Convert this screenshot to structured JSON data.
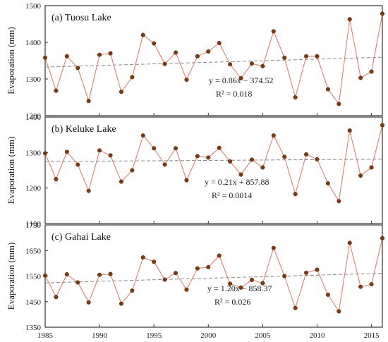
{
  "chart_data": [
    {
      "type": "line",
      "title": "(a) Tuosu Lake",
      "ylabel": "Evaporation (mm)",
      "xlabel": "",
      "xlim": [
        1985,
        2016
      ],
      "ylim": [
        1200,
        1500
      ],
      "yticks": [
        1200,
        1300,
        1400,
        1500
      ],
      "xticks": [
        1985,
        1990,
        1995,
        2000,
        2005,
        2010,
        2015
      ],
      "show_x_tick_labels": false,
      "trend_equation": "y = 0.86x − 374.52",
      "r_squared": "R² = 0.018",
      "trend_coeffs": [
        0.86,
        -374.52
      ],
      "series": [
        {
          "x": [
            1985,
            1986,
            1987,
            1988,
            1989,
            1990,
            1991,
            1992,
            1993,
            1994,
            1995,
            1996,
            1997,
            1998,
            1999,
            2000,
            2001,
            2002,
            2003,
            2004,
            2005,
            2006,
            2007,
            2008,
            2009,
            2010,
            2011,
            2012,
            2013,
            2014,
            2015,
            2016
          ],
          "values": [
            1358,
            1268,
            1362,
            1330,
            1240,
            1366,
            1370,
            1265,
            1305,
            1420,
            1397,
            1341,
            1372,
            1298,
            1362,
            1375,
            1398,
            1340,
            1302,
            1342,
            1335,
            1430,
            1358,
            1250,
            1362,
            1362,
            1272,
            1232,
            1463,
            1303,
            1320,
            1478
          ]
        }
      ]
    },
    {
      "type": "line",
      "title": "(b) Keluke Lake",
      "ylabel": "Evaporation (mm)",
      "xlabel": "",
      "xlim": [
        1985,
        2016
      ],
      "ylim": [
        1100,
        1400
      ],
      "yticks": [
        1100,
        1200,
        1300,
        1400
      ],
      "xticks": [
        1985,
        1990,
        1995,
        2000,
        2005,
        2010,
        2015
      ],
      "show_x_tick_labels": false,
      "trend_equation": "y = 0.21x + 857.88",
      "r_squared": "R² = 0.0014",
      "trend_coeffs": [
        0.21,
        857.88
      ],
      "series": [
        {
          "x": [
            1985,
            1986,
            1987,
            1988,
            1989,
            1990,
            1991,
            1992,
            1993,
            1994,
            1995,
            1996,
            1997,
            1998,
            1999,
            2000,
            2001,
            2002,
            2003,
            2004,
            2005,
            2006,
            2007,
            2008,
            2009,
            2010,
            2011,
            2012,
            2013,
            2014,
            2015,
            2016
          ],
          "values": [
            1298,
            1225,
            1302,
            1266,
            1192,
            1306,
            1292,
            1218,
            1250,
            1348,
            1312,
            1266,
            1312,
            1222,
            1290,
            1286,
            1313,
            1275,
            1238,
            1280,
            1258,
            1348,
            1288,
            1183,
            1295,
            1281,
            1213,
            1163,
            1362,
            1235,
            1258,
            1377
          ]
        }
      ]
    },
    {
      "type": "line",
      "title": "(c) Gahai Lake",
      "ylabel": "Evaporation (mm)",
      "xlabel": "",
      "xlim": [
        1985,
        2016
      ],
      "ylim": [
        1350,
        1750
      ],
      "yticks": [
        1350,
        1450,
        1550,
        1650,
        1750
      ],
      "xticks": [
        1985,
        1990,
        1995,
        2000,
        2005,
        2010,
        2015
      ],
      "show_x_tick_labels": true,
      "trend_equation": "y = 1.20x − 858.37",
      "r_squared": "R² = 0.026",
      "trend_coeffs": [
        1.2,
        -858.37
      ],
      "series": [
        {
          "x": [
            1985,
            1986,
            1987,
            1988,
            1989,
            1990,
            1991,
            1992,
            1993,
            1994,
            1995,
            1996,
            1997,
            1998,
            1999,
            2000,
            2001,
            2002,
            2003,
            2004,
            2005,
            2006,
            2007,
            2008,
            2009,
            2010,
            2011,
            2012,
            2013,
            2014,
            2015,
            2016
          ],
          "values": [
            1552,
            1468,
            1557,
            1525,
            1447,
            1555,
            1558,
            1442,
            1493,
            1623,
            1606,
            1536,
            1562,
            1497,
            1580,
            1585,
            1630,
            1520,
            1505,
            1535,
            1522,
            1660,
            1550,
            1425,
            1563,
            1575,
            1477,
            1412,
            1680,
            1508,
            1518,
            1698
          ]
        }
      ]
    }
  ],
  "colors": {
    "series_line": "#d9826e",
    "points": "#7a3a12",
    "trend": "#888888",
    "frame": "#333333"
  }
}
